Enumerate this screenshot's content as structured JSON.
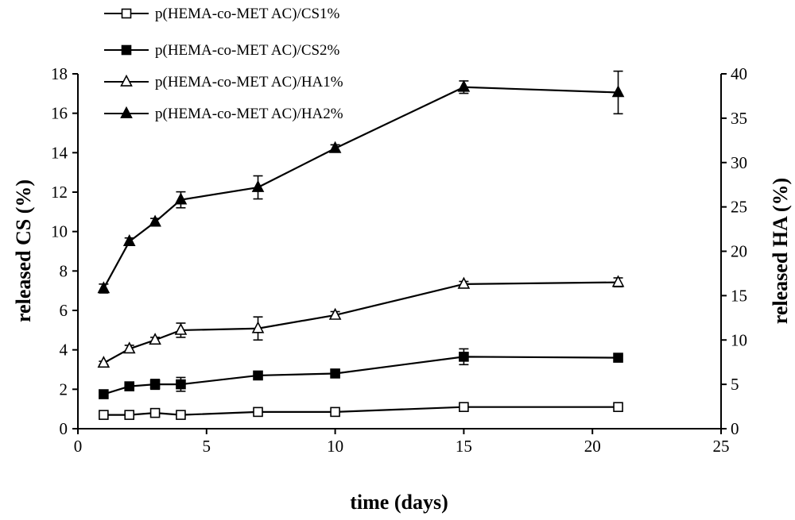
{
  "chart_data": {
    "type": "line",
    "title": "",
    "xlabel": "time (days)",
    "ylabel": "released CS (%)",
    "y2label": "released HA (%)",
    "xlim": [
      0,
      25
    ],
    "ylim": [
      0,
      18
    ],
    "y2lim": [
      0,
      40
    ],
    "xticks": [
      "0",
      "5",
      "10",
      "15",
      "20",
      "25"
    ],
    "yticks": [
      "0",
      "2",
      "4",
      "6",
      "8",
      "10",
      "12",
      "14",
      "16",
      "18"
    ],
    "y2ticks": [
      "0",
      "5",
      "10",
      "15",
      "20",
      "25",
      "30",
      "35",
      "40"
    ],
    "grid": false,
    "legend_position": "top-left",
    "series": [
      {
        "name": "p(HEMA-co-MET AC)/CS1%",
        "axis": "left",
        "marker": "square-open",
        "x": [
          1,
          2,
          3,
          4,
          7,
          10,
          15,
          21
        ],
        "values": [
          0.7,
          0.7,
          0.8,
          0.7,
          0.85,
          0.85,
          1.1,
          1.1
        ],
        "errors": [
          0.05,
          0.05,
          0.05,
          0.05,
          0.05,
          0.05,
          0.05,
          0.05
        ]
      },
      {
        "name": "p(HEMA-co-MET AC)/CS2%",
        "axis": "left",
        "marker": "square-filled",
        "x": [
          1,
          2,
          3,
          4,
          7,
          10,
          15,
          21
        ],
        "values": [
          1.75,
          2.15,
          2.25,
          2.25,
          2.7,
          2.8,
          3.65,
          3.6
        ],
        "errors": [
          0.1,
          0.1,
          0.25,
          0.35,
          0.15,
          0.1,
          0.4,
          0.1
        ]
      },
      {
        "name": "p(HEMA-co-MET AC)/HA1%",
        "axis": "right",
        "marker": "triangle-open",
        "x": [
          1,
          2,
          3,
          4,
          7,
          10,
          15,
          21
        ],
        "values": [
          7.4,
          9.0,
          10.0,
          11.1,
          11.3,
          12.8,
          16.3,
          16.5
        ],
        "errors": [
          0.2,
          0.4,
          0.3,
          0.8,
          1.3,
          0.4,
          0.3,
          0.5
        ]
      },
      {
        "name": "p(HEMA-co-MET AC)/HA2%",
        "axis": "right",
        "marker": "triangle-filled",
        "x": [
          1,
          2,
          3,
          4,
          7,
          10,
          15,
          21
        ],
        "values": [
          15.8,
          21.1,
          23.3,
          25.8,
          27.2,
          31.6,
          38.5,
          37.9
        ],
        "errors": [
          0.5,
          0.4,
          0.4,
          0.9,
          1.3,
          0.4,
          0.7,
          2.4
        ]
      }
    ]
  }
}
